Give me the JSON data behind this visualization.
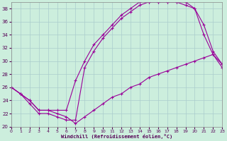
{
  "xlabel": "Windchill (Refroidissement éolien,°C)",
  "bg_color": "#cceedd",
  "grid_color": "#aacccc",
  "line_color": "#990099",
  "xlim": [
    0,
    23
  ],
  "ylim": [
    20,
    39
  ],
  "xticks": [
    0,
    1,
    2,
    3,
    4,
    5,
    6,
    7,
    8,
    9,
    10,
    11,
    12,
    13,
    14,
    15,
    16,
    17,
    18,
    19,
    20,
    21,
    22,
    23
  ],
  "yticks": [
    20,
    22,
    24,
    26,
    28,
    30,
    32,
    34,
    36,
    38
  ],
  "line1_x": [
    0,
    1,
    2,
    3,
    4,
    5,
    6,
    7,
    8,
    9,
    10,
    11,
    12,
    13,
    14,
    15,
    16,
    17,
    18,
    19,
    20,
    21,
    22,
    23
  ],
  "line1_y": [
    26.0,
    25.0,
    23.5,
    22.0,
    22.0,
    21.5,
    21.0,
    21.0,
    29.0,
    31.5,
    33.5,
    35.0,
    36.5,
    37.5,
    38.5,
    39.0,
    39.0,
    39.0,
    39.0,
    39.0,
    38.0,
    34.0,
    31.0,
    29.5
  ],
  "line2_x": [
    0,
    1,
    2,
    3,
    4,
    5,
    6,
    7,
    8,
    9,
    10,
    11,
    12,
    13,
    14,
    15,
    16,
    17,
    18,
    19,
    20,
    21,
    22,
    23
  ],
  "line2_y": [
    26.0,
    25.0,
    24.0,
    22.5,
    22.5,
    22.5,
    22.5,
    27.0,
    30.0,
    32.5,
    34.0,
    35.5,
    37.0,
    38.0,
    39.0,
    39.0,
    39.0,
    39.0,
    39.0,
    38.5,
    38.0,
    35.5,
    31.5,
    29.5
  ],
  "line3_x": [
    0,
    1,
    2,
    3,
    4,
    5,
    6,
    7,
    8,
    9,
    10,
    11,
    12,
    13,
    14,
    15,
    16,
    17,
    18,
    19,
    20,
    21,
    22,
    23
  ],
  "line3_y": [
    26.0,
    25.0,
    24.0,
    22.5,
    22.5,
    22.0,
    21.5,
    20.5,
    21.5,
    22.5,
    23.5,
    24.5,
    25.0,
    26.0,
    26.5,
    27.5,
    28.0,
    28.5,
    29.0,
    29.5,
    30.0,
    30.5,
    31.0,
    29.0
  ]
}
